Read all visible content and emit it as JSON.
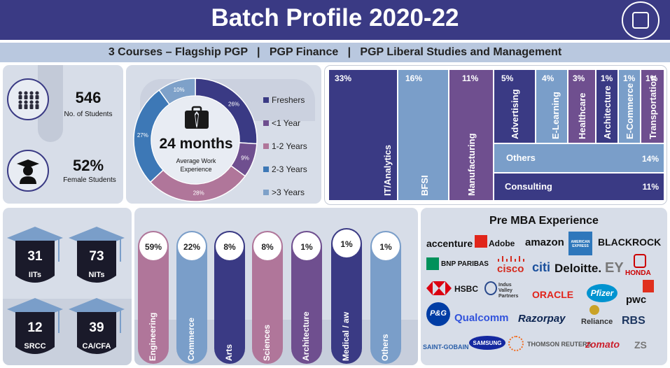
{
  "header": {
    "title": "Batch Profile 2020-22",
    "subtitle": "3 Courses – Flagship PGP   |   PGP Finance   |   PGP Liberal Studies and Management"
  },
  "stats": {
    "students": {
      "value": "546",
      "label": "No. of Students"
    },
    "female": {
      "value": "52%",
      "label": "Female Students"
    }
  },
  "work_experience": {
    "center_value": "24 months",
    "center_label": "Average Work Experience",
    "legend": [
      "Freshers",
      "<1 Year",
      "1-2 Years",
      "2-3 Years",
      ">3 Years"
    ]
  },
  "chart_data": {
    "type": "pie",
    "categories": [
      "Freshers",
      "<1 Year",
      "1-2 Years",
      "2-3 Years",
      ">3 Years"
    ],
    "values": [
      26,
      9,
      28,
      27,
      10
    ],
    "labels": [
      "26%",
      "9%",
      "28%",
      "27%",
      "10%"
    ],
    "colors": [
      "#3a3a84",
      "#6f4f8f",
      "#b0769a",
      "#3d78b6",
      "#7ea1c9"
    ]
  },
  "industries": [
    {
      "label": "IT/Analytics",
      "pct": "33%",
      "color": "#3a3a84"
    },
    {
      "label": "BFSI",
      "pct": "16%",
      "color": "#7a9ec9"
    },
    {
      "label": "Manufacturing",
      "pct": "11%",
      "color": "#6f4f8f"
    },
    {
      "label": "Advertising",
      "pct": "5%",
      "color": "#3a3a84"
    },
    {
      "label": "E-Learning",
      "pct": "4%",
      "color": "#7a9ec9"
    },
    {
      "label": "Healthcare",
      "pct": "3%",
      "color": "#6f4f8f"
    },
    {
      "label": "Architecture",
      "pct": "1%",
      "color": "#3a3a84"
    },
    {
      "label": "E-Commerce",
      "pct": "1%",
      "color": "#7a9ec9"
    },
    {
      "label": "Transportation",
      "pct": "1%",
      "color": "#6f4f8f"
    },
    {
      "label": "Others",
      "pct": "14%",
      "color": "#7a9ec9"
    },
    {
      "label": "Consulting",
      "pct": "11%",
      "color": "#3a3a84"
    }
  ],
  "institutes": [
    {
      "value": "31",
      "label": "IITs"
    },
    {
      "value": "73",
      "label": "NITs"
    },
    {
      "value": "12",
      "label": "SRCC"
    },
    {
      "value": "39",
      "label": "CA/CFA"
    }
  ],
  "education": [
    {
      "label": "Engineering",
      "pct": "59%",
      "color": "#b0769a"
    },
    {
      "label": "Commerce",
      "pct": "22%",
      "color": "#7a9ec9"
    },
    {
      "label": "Arts",
      "pct": "8%",
      "color": "#3a3a84"
    },
    {
      "label": "Sciences",
      "pct": "8%",
      "color": "#b0769a"
    },
    {
      "label": "Architecture",
      "pct": "1%",
      "color": "#6f4f8f"
    },
    {
      "label": "Medical / aw",
      "pct": "1%",
      "color": "#3a3a84"
    },
    {
      "label": "Others",
      "pct": "1%",
      "color": "#7a9ec9"
    }
  ],
  "pre_mba": {
    "title": "Pre MBA Experience",
    "logos": [
      "accenture",
      "Adobe",
      "amazon",
      "AMERICAN EXPRESS",
      "BLACKROCK",
      "BNP PARIBAS",
      "cisco",
      "citi",
      "Deloitte.",
      "EY",
      "HONDA",
      "HSBC",
      "Indus Valley Partners",
      "ORACLE",
      "Pfizer",
      "pwc",
      "P&G",
      "Qualcomm",
      "Razorpay",
      "Reliance",
      "RBS",
      "SAINT-GOBAIN",
      "SAMSUNG",
      "THOMSON REUTERS",
      "zomato",
      "ZS"
    ]
  }
}
